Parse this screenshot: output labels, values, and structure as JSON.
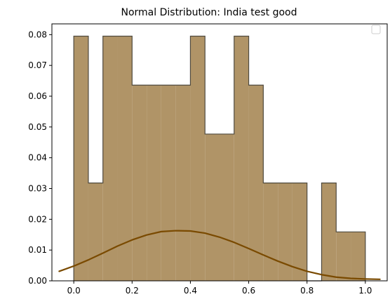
{
  "chart_data": {
    "type": "bar",
    "title": "Normal Distribution: India test good",
    "xlabel": "",
    "ylabel": "",
    "xlim": [
      -0.075,
      1.075
    ],
    "ylim": [
      0,
      0.0835
    ],
    "grid": false,
    "legend": "top-right",
    "legend_entries": [],
    "x_ticks": [
      "0.0",
      "0.2",
      "0.4",
      "0.6",
      "0.8",
      "1.0"
    ],
    "x_tick_values": [
      0.0,
      0.2,
      0.4,
      0.6,
      0.8,
      1.0
    ],
    "y_ticks": [
      "0.00",
      "0.01",
      "0.02",
      "0.03",
      "0.04",
      "0.05",
      "0.06",
      "0.07",
      "0.08"
    ],
    "y_tick_values": [
      0.0,
      0.01,
      0.02,
      0.03,
      0.04,
      0.05,
      0.06,
      0.07,
      0.08
    ],
    "histogram": {
      "bin_edges": [
        0.0,
        0.05,
        0.1,
        0.15,
        0.2,
        0.25,
        0.3,
        0.35,
        0.4,
        0.45,
        0.5,
        0.55,
        0.6,
        0.65,
        0.7,
        0.75,
        0.8,
        0.85,
        0.9,
        0.95,
        1.0
      ],
      "values": [
        0.0795,
        0.0318,
        0.0795,
        0.0795,
        0.0636,
        0.0636,
        0.0636,
        0.0636,
        0.0795,
        0.0477,
        0.0477,
        0.0795,
        0.0636,
        0.0318,
        0.0318,
        0.0318,
        0.0,
        0.0318,
        0.0159,
        0.0159
      ],
      "fill_color": "#b09467",
      "edge_color": "#4f4a3f"
    },
    "curve": {
      "type": "line",
      "color": "#7a4a00",
      "x": [
        -0.05,
        0.0,
        0.05,
        0.1,
        0.15,
        0.2,
        0.25,
        0.3,
        0.35,
        0.4,
        0.45,
        0.5,
        0.55,
        0.6,
        0.65,
        0.7,
        0.75,
        0.8,
        0.85,
        0.9,
        0.95,
        1.0,
        1.05
      ],
      "y": [
        0.0031,
        0.0048,
        0.0068,
        0.009,
        0.0113,
        0.0133,
        0.0149,
        0.016,
        0.0163,
        0.0162,
        0.0155,
        0.0142,
        0.0125,
        0.0105,
        0.0084,
        0.0064,
        0.0046,
        0.0031,
        0.002,
        0.0012,
        0.0008,
        0.0006,
        0.0005
      ]
    }
  }
}
